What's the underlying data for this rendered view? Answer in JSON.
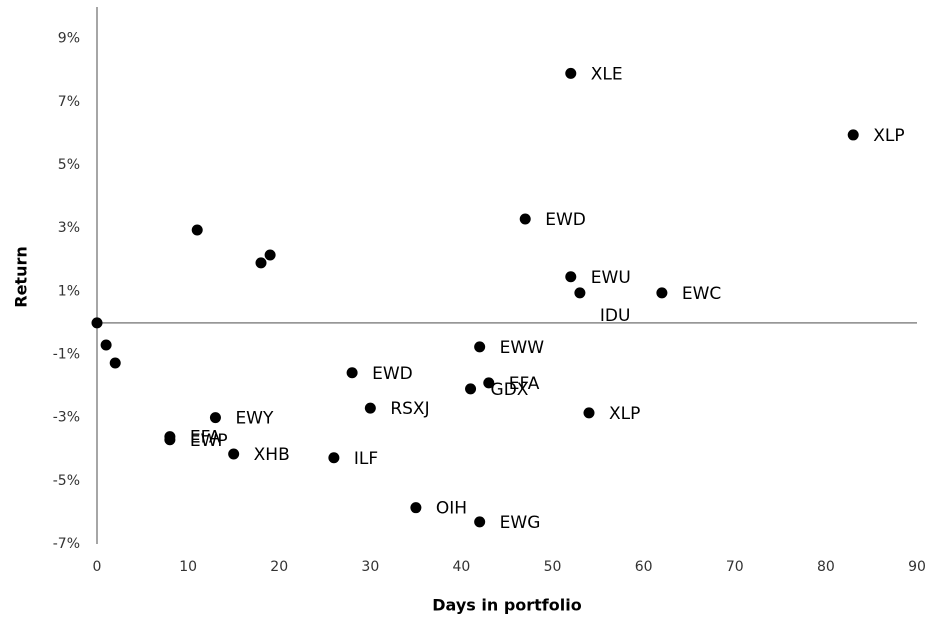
{
  "chart_data": {
    "type": "scatter",
    "x_label": "Days in portfolio",
    "y_label": "Return",
    "x": [
      0,
      1,
      2,
      11,
      18,
      19,
      8,
      8,
      13,
      15,
      28,
      30,
      26,
      35,
      42,
      41,
      43,
      42,
      47,
      52,
      53,
      52,
      83,
      62,
      54
    ],
    "y": [
      0,
      -0.7,
      -1.27,
      2.94,
      1.9,
      2.15,
      -3.6,
      -3.7,
      -3.0,
      -4.15,
      -1.58,
      -2.7,
      -4.27,
      -5.85,
      -0.76,
      -2.09,
      -1.9,
      -6.3,
      3.29,
      1.46,
      0.95,
      7.9,
      5.95,
      0.95,
      -2.85
    ],
    "labels": [
      null,
      null,
      null,
      null,
      null,
      null,
      "EFA",
      "EWP",
      "EWY",
      "XHB",
      "EWD",
      "RSXJ",
      "ILF",
      "OIH",
      "EWW",
      "GDX",
      "EFA",
      "EWG",
      "EWD",
      "EWU",
      "IDU",
      "XLE",
      "XLP",
      "EWC",
      "XLP"
    ],
    "color": "#000000",
    "xlim": [
      0,
      90
    ],
    "xticks": [
      0,
      10,
      20,
      30,
      40,
      50,
      60,
      70,
      80,
      90
    ],
    "ylim": [
      -7,
      10
    ],
    "yticks": [
      {
        "value": -7,
        "label": "-7%"
      },
      {
        "value": -5,
        "label": "-5%"
      },
      {
        "value": -3,
        "label": "-3%"
      },
      {
        "value": -1,
        "label": "-1%"
      },
      {
        "value": 1,
        "label": "1%"
      },
      {
        "value": 3,
        "label": "3%"
      },
      {
        "value": 5,
        "label": "5%"
      },
      {
        "value": 7,
        "label": "7%"
      },
      {
        "value": 9,
        "label": "9%"
      }
    ]
  }
}
